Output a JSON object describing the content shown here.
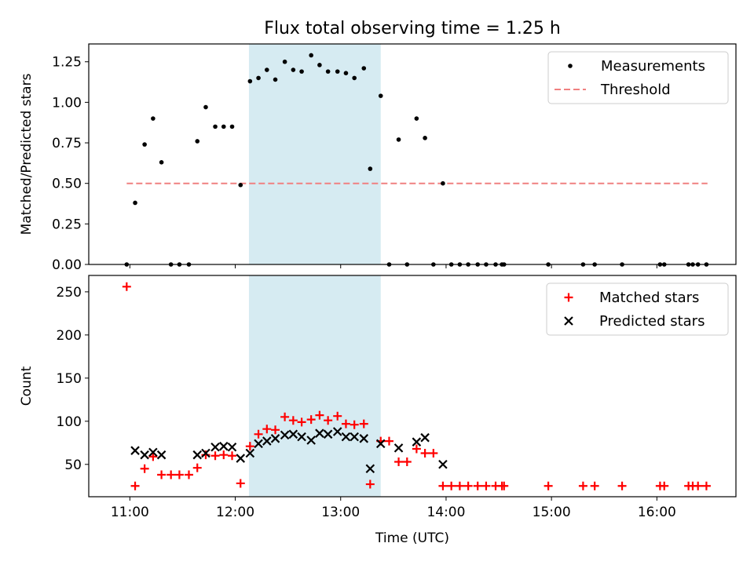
{
  "title": "Flux total observing time = 1.25 h",
  "colors": {
    "measurement": "#000000",
    "threshold": "#f08080",
    "matched": "#ff0000",
    "predicted": "#000000",
    "span": "#add8e6"
  },
  "chart_data": [
    {
      "type": "scatter",
      "ylabel": "Matched/Predicted stars",
      "xlim": [
        10.61,
        16.75
      ],
      "ylim": [
        0,
        1.36
      ],
      "yticks": [
        0.0,
        0.25,
        0.5,
        0.75,
        1.0,
        1.25
      ],
      "ytick_labels": [
        "0.00",
        "0.25",
        "0.50",
        "0.75",
        "1.00",
        "1.25"
      ],
      "xticks": [
        11,
        12,
        13,
        14,
        15,
        16
      ],
      "highlight_span": [
        12.13,
        13.38
      ],
      "legend": [
        "Measurements",
        "Threshold"
      ],
      "threshold": {
        "name": "Threshold",
        "value": 0.5,
        "x": [
          10.97,
          16.48
        ]
      },
      "series": [
        {
          "name": "Measurements",
          "x": [
            10.97,
            11.05,
            11.14,
            11.22,
            11.3,
            11.39,
            11.47,
            11.56,
            11.64,
            11.72,
            11.81,
            11.89,
            11.97,
            12.05,
            12.14,
            12.22,
            12.3,
            12.38,
            12.47,
            12.55,
            12.63,
            12.72,
            12.8,
            12.88,
            12.97,
            13.05,
            13.13,
            13.22,
            13.28,
            13.38,
            13.46,
            13.55,
            13.63,
            13.72,
            13.8,
            13.88,
            13.97,
            14.05,
            14.13,
            14.21,
            14.3,
            14.38,
            14.47,
            14.53,
            14.55,
            14.97,
            15.3,
            15.41,
            15.67,
            16.03,
            16.07,
            16.3,
            16.34,
            16.39,
            16.47
          ],
          "y": [
            0.0,
            0.38,
            0.74,
            0.9,
            0.63,
            0.0,
            0.0,
            0.0,
            0.76,
            0.97,
            0.85,
            0.85,
            0.85,
            0.49,
            1.13,
            1.15,
            1.2,
            1.14,
            1.25,
            1.2,
            1.19,
            1.29,
            1.23,
            1.19,
            1.19,
            1.18,
            1.15,
            1.21,
            0.59,
            1.04,
            0.0,
            0.77,
            0.0,
            0.9,
            0.78,
            0.0,
            0.5,
            0.0,
            0.0,
            0.0,
            0.0,
            0.0,
            0.0,
            0.0,
            0.0,
            0.0,
            0.0,
            0.0,
            0.0,
            0.0,
            0.0,
            0.0,
            0.0,
            0.0,
            0.0
          ]
        }
      ]
    },
    {
      "type": "scatter",
      "xlabel": "Time (UTC)",
      "ylabel": "Count",
      "xlim": [
        10.61,
        16.75
      ],
      "ylim": [
        12.5,
        269
      ],
      "yticks": [
        50,
        100,
        150,
        200,
        250
      ],
      "ytick_labels": [
        "50",
        "100",
        "150",
        "200",
        "250"
      ],
      "xticks": [
        11,
        12,
        13,
        14,
        15,
        16
      ],
      "xtick_labels": [
        "11:00",
        "12:00",
        "13:00",
        "14:00",
        "15:00",
        "16:00"
      ],
      "highlight_span": [
        12.13,
        13.38
      ],
      "legend": [
        "Matched stars",
        "Predicted stars"
      ],
      "series": [
        {
          "name": "Matched stars",
          "x": [
            10.97,
            11.05,
            11.14,
            11.22,
            11.3,
            11.39,
            11.47,
            11.56,
            11.64,
            11.72,
            11.81,
            11.89,
            11.97,
            12.05,
            12.14,
            12.22,
            12.3,
            12.38,
            12.47,
            12.55,
            12.63,
            12.72,
            12.8,
            12.88,
            12.97,
            13.05,
            13.13,
            13.22,
            13.28,
            13.38,
            13.46,
            13.55,
            13.63,
            13.72,
            13.8,
            13.88,
            13.97,
            14.05,
            14.13,
            14.21,
            14.3,
            14.38,
            14.47,
            14.53,
            14.55,
            14.97,
            15.3,
            15.41,
            15.67,
            16.03,
            16.07,
            16.3,
            16.34,
            16.39,
            16.47
          ],
          "y": [
            256,
            25,
            45,
            59,
            38,
            38,
            38,
            38,
            46,
            61,
            60,
            61,
            60,
            28,
            71,
            85,
            91,
            90,
            105,
            101,
            99,
            102,
            107,
            101,
            106,
            97,
            96,
            97,
            27,
            77,
            77,
            53,
            53,
            68,
            63,
            63,
            25,
            25,
            25,
            25,
            25,
            25,
            25,
            25,
            25,
            25,
            25,
            25,
            25,
            25,
            25,
            25,
            25,
            25,
            25
          ]
        },
        {
          "name": "Predicted stars",
          "x": [
            11.05,
            11.14,
            11.22,
            11.3,
            11.64,
            11.72,
            11.81,
            11.89,
            11.97,
            12.05,
            12.14,
            12.22,
            12.3,
            12.38,
            12.47,
            12.55,
            12.63,
            12.72,
            12.8,
            12.88,
            12.97,
            13.05,
            13.13,
            13.22,
            13.28,
            13.38,
            13.55,
            13.72,
            13.8,
            13.97
          ],
          "y": [
            66,
            61,
            64,
            61,
            61,
            63,
            70,
            71,
            70,
            57,
            63,
            74,
            77,
            80,
            84,
            85,
            82,
            78,
            86,
            85,
            88,
            82,
            82,
            80,
            45,
            74,
            69,
            76,
            81,
            50
          ]
        }
      ]
    }
  ]
}
